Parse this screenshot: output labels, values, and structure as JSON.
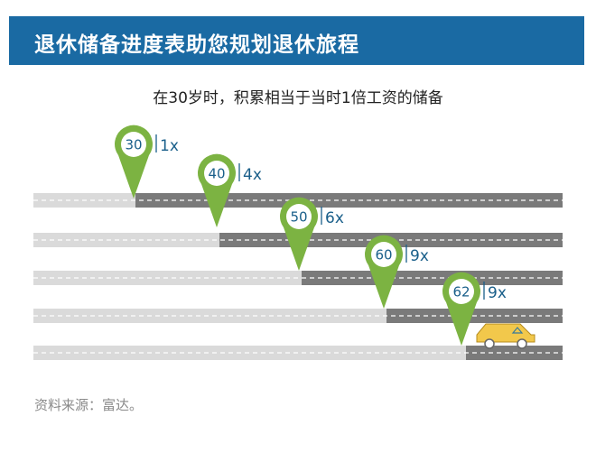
{
  "header": {
    "title": "退休储备进度表助您规划退休旅程"
  },
  "subtitle": "在30岁时，积累相当于当时1倍工资的储备",
  "milestones": [
    {
      "age": "30",
      "multiple": "1x"
    },
    {
      "age": "40",
      "multiple": "4x"
    },
    {
      "age": "50",
      "multiple": "6x"
    },
    {
      "age": "60",
      "multiple": "9x"
    },
    {
      "age": "62",
      "multiple": "9x"
    }
  ],
  "source": "资料来源：富达。",
  "colors": {
    "header_bg": "#1a6aa3",
    "pin_green": "#7cb342",
    "road_done": "#dadada",
    "road_ahead": "#7a7a7a",
    "label_blue": "#1a5f8a",
    "car_yellow": "#f2c84b"
  }
}
